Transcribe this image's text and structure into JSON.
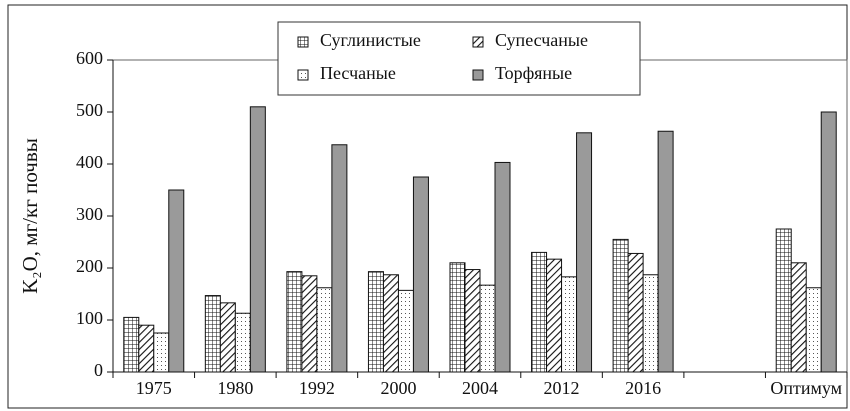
{
  "chart_data": {
    "type": "bar",
    "ylabel": "K₂O, мг/кг почвы",
    "categories": [
      "1975",
      "1980",
      "1992",
      "2000",
      "2004",
      "2012",
      "2016",
      null,
      "Оптимум"
    ],
    "series": [
      {
        "name": "Суглинистые",
        "color": "#ffffff",
        "pattern": "grid",
        "values": [
          105,
          147,
          193,
          193,
          210,
          230,
          255,
          null,
          275
        ]
      },
      {
        "name": "Супесчаные",
        "color": "#ffffff",
        "pattern": "hatch",
        "values": [
          90,
          133,
          185,
          187,
          197,
          217,
          228,
          null,
          210
        ]
      },
      {
        "name": "Песчаные",
        "color": "#ffffff",
        "pattern": "dots",
        "values": [
          75,
          113,
          162,
          157,
          167,
          183,
          187,
          null,
          162
        ]
      },
      {
        "name": "Торфяные",
        "color": "#9a9a9a",
        "pattern": "solid",
        "values": [
          350,
          510,
          437,
          375,
          403,
          460,
          463,
          null,
          500
        ]
      }
    ],
    "ylim": [
      0,
      600
    ],
    "yticks": [
      0,
      100,
      200,
      300,
      400,
      500,
      600
    ],
    "grid": false
  }
}
